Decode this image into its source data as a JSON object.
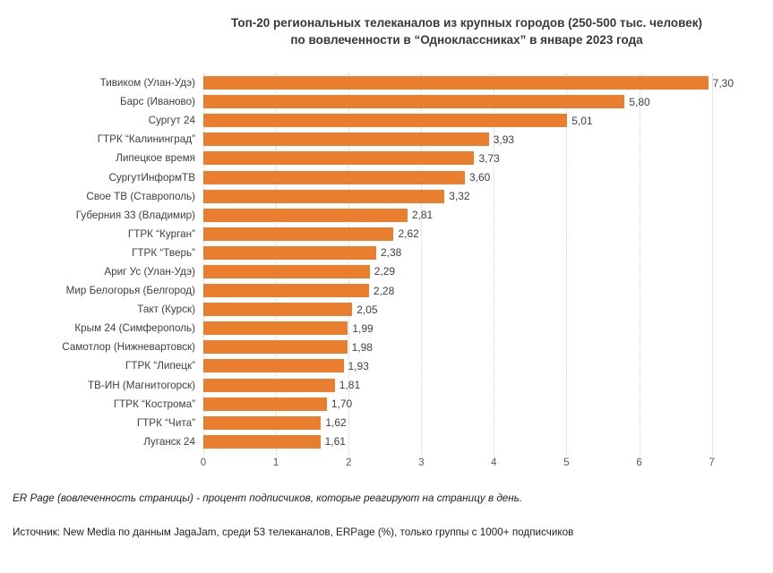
{
  "title": {
    "line1": "Топ-20 региональных телеканалов из крупных городов (250-500 тыс. человек)",
    "line2": "по вовлеченности в “Одноклассниках” в январе 2023 года"
  },
  "chart_data": {
    "type": "bar",
    "orientation": "horizontal",
    "title": "Топ-20 региональных телеканалов из крупных городов (250-500 тыс. человек) по вовлеченности в “Одноклассниках” в январе 2023 года",
    "categories": [
      "Тивиком (Улан-Удэ)",
      "Барс (Иваново)",
      "Сургут 24",
      "ГТРК “Калининград”",
      "Липецкое время",
      "СургутИнформТВ",
      "Свое ТВ (Ставрополь)",
      "Губерния 33 (Владимир)",
      "ГТРК “Курган”",
      "ГТРК “Тверь”",
      "Ариг Ус (Улан-Удэ)",
      "Мир Белогорья (Белгород)",
      "Такт (Курск)",
      "Крым 24 (Симферополь)",
      "Самотлор (Нижневартовск)",
      "ГТРК “Липецк”",
      "ТВ-ИН (Магнитогорск)",
      "ГТРК “Кострома”",
      "ГТРК “Чита”",
      "Луганск 24"
    ],
    "values": [
      7.3,
      5.8,
      5.01,
      3.93,
      3.73,
      3.6,
      3.32,
      2.81,
      2.62,
      2.38,
      2.29,
      2.28,
      2.05,
      1.99,
      1.98,
      1.93,
      1.81,
      1.7,
      1.62,
      1.61
    ],
    "value_labels": [
      "7,30",
      "5,80",
      "5,01",
      "3,93",
      "3,73",
      "3,60",
      "3,32",
      "2,81",
      "2,62",
      "2,38",
      "2,29",
      "2,28",
      "2,05",
      "1,99",
      "1,98",
      "1,93",
      "1,81",
      "1,70",
      "1,62",
      "1,61"
    ],
    "xlabel": "",
    "ylabel": "",
    "x_ticks": [
      0,
      1,
      2,
      3,
      4,
      5,
      6,
      7
    ],
    "xlim": [
      0,
      7.3
    ],
    "grid": true,
    "legend": false,
    "bar_color": "#E87E2E",
    "units": "ERPage (%)"
  },
  "footnotes": {
    "definition": "ER Page (вовлеченность страницы) - процент подписчиков, которые реагируют на страницу в день.",
    "source": "Источник: New Media по данным JagaJam, среди 53 телеканалов, ERPage (%), только группы с 1000+ подписчиков"
  }
}
